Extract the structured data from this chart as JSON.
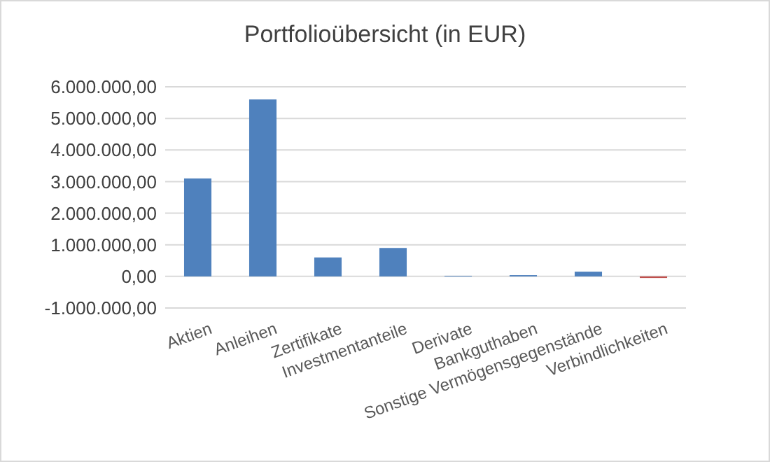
{
  "chart_data": {
    "type": "bar",
    "title": "Portfolioübersicht  (in EUR)",
    "categories": [
      "Aktien",
      "Anleihen",
      "Zertifikate",
      "Investmentanteile",
      "Derivate",
      "Bankguthaben",
      "Sonstige Vermögensgegenstände",
      "Verbindlichkeiten"
    ],
    "values": [
      3100000,
      5600000,
      600000,
      900000,
      20000,
      40000,
      150000,
      -50000
    ],
    "colors": [
      "#4f81bd",
      "#4f81bd",
      "#4f81bd",
      "#4f81bd",
      "#4f81bd",
      "#4f81bd",
      "#4f81bd",
      "#c0504d"
    ],
    "ylim": [
      -1000000,
      6000000
    ],
    "yticks": [
      {
        "value": -1000000,
        "label": "-1.000.000,00"
      },
      {
        "value": 0,
        "label": "0,00"
      },
      {
        "value": 1000000,
        "label": "1.000.000,00"
      },
      {
        "value": 2000000,
        "label": "2.000.000,00"
      },
      {
        "value": 3000000,
        "label": "3.000.000,00"
      },
      {
        "value": 4000000,
        "label": "4.000.000,00"
      },
      {
        "value": 5000000,
        "label": "5.000.000,00"
      },
      {
        "value": 6000000,
        "label": "6.000.000,00"
      }
    ],
    "grid": true
  }
}
